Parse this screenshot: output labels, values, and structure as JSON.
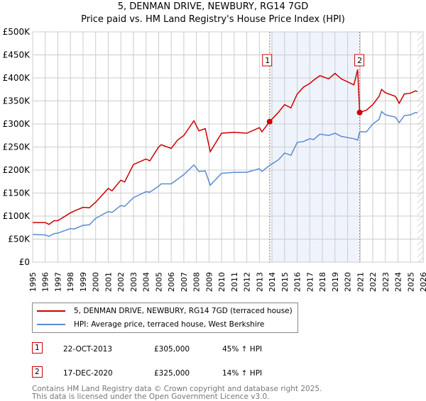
{
  "chart_data": {
    "type": "line",
    "title": "5, DENMAN DRIVE, NEWBURY, RG14 7GD",
    "subtitle": "Price paid vs. HM Land Registry's House Price Index (HPI)",
    "xlim": [
      1995,
      2026
    ],
    "ylim": [
      0,
      500000
    ],
    "x_ticks": [
      "1995",
      "1996",
      "1997",
      "1998",
      "1999",
      "2000",
      "2001",
      "2002",
      "2003",
      "2004",
      "2005",
      "2006",
      "2007",
      "2008",
      "2009",
      "2010",
      "2011",
      "2012",
      "2013",
      "2014",
      "2015",
      "2016",
      "2017",
      "2018",
      "2019",
      "2020",
      "2021",
      "2022",
      "2023",
      "2024",
      "2025",
      "2026"
    ],
    "y_ticks": [
      "£0",
      "£50K",
      "£100K",
      "£150K",
      "£200K",
      "£250K",
      "£300K",
      "£350K",
      "£400K",
      "£450K",
      "£500K"
    ],
    "grid": true,
    "shaded_region": [
      2013.81,
      2020.96
    ],
    "forecast_hatch_from": 2025.55,
    "series": [
      {
        "name": "5, DENMAN DRIVE, NEWBURY, RG14 7GD (terraced house)",
        "color": "#cc0000",
        "x": [
          1995,
          1996,
          1996.3,
          1996.7,
          1997,
          1998,
          1998.3,
          1999,
          1999.5,
          2000,
          2001,
          2001.3,
          2002,
          2002.3,
          2003,
          2004,
          2004.3,
          2005,
          2005.2,
          2006,
          2006.5,
          2007,
          2007.8,
          2008.2,
          2008.7,
          2009.1,
          2010,
          2011,
          2012,
          2013,
          2013.2,
          2013.81,
          2014.5,
          2015,
          2015.5,
          2016,
          2016.5,
          2017,
          2017.3,
          2017.8,
          2018.5,
          2019,
          2019.5,
          2020.5,
          2020.8,
          2020.96,
          2021.5,
          2022,
          2022.5,
          2022.7,
          2023,
          2023.8,
          2024.1,
          2024.5,
          2025,
          2025.4,
          2025.55
        ],
        "y": [
          86000,
          86000,
          82000,
          90000,
          90000,
          107000,
          111000,
          119000,
          118000,
          130000,
          160000,
          155000,
          178000,
          174000,
          212000,
          224000,
          220000,
          250000,
          255000,
          247000,
          265000,
          275000,
          307000,
          285000,
          290000,
          240000,
          280000,
          282000,
          280000,
          292000,
          283000,
          305000,
          325000,
          342000,
          335000,
          365000,
          380000,
          388000,
          395000,
          405000,
          398000,
          410000,
          398000,
          385000,
          418000,
          325000,
          330000,
          342000,
          360000,
          375000,
          368000,
          360000,
          345000,
          365000,
          367000,
          372000,
          370000
        ]
      },
      {
        "name": "HPI: Average price, terraced house, West Berkshire",
        "color": "#5b8bd0",
        "x": [
          1995,
          1996,
          1996.3,
          1996.7,
          1997,
          1998,
          1998.3,
          1999,
          1999.5,
          2000,
          2001,
          2001.3,
          2002,
          2002.3,
          2003,
          2004,
          2004.3,
          2005,
          2005.2,
          2006,
          2006.5,
          2007,
          2007.8,
          2008.2,
          2008.7,
          2009.1,
          2010,
          2011,
          2012,
          2013,
          2013.2,
          2013.81,
          2014.5,
          2015,
          2015.5,
          2016,
          2016.5,
          2017,
          2017.3,
          2017.8,
          2018.5,
          2019,
          2019.5,
          2020.5,
          2020.8,
          2020.96,
          2021.5,
          2022,
          2022.5,
          2022.7,
          2023,
          2023.8,
          2024.1,
          2024.5,
          2025,
          2025.4,
          2025.55
        ],
        "y": [
          60000,
          59000,
          56000,
          62000,
          63000,
          73000,
          72000,
          80000,
          81000,
          95000,
          110000,
          108000,
          123000,
          121000,
          140000,
          153000,
          152000,
          165000,
          170000,
          170000,
          180000,
          190000,
          211000,
          197000,
          198000,
          167000,
          193000,
          195000,
          195000,
          203000,
          197000,
          210000,
          222000,
          237000,
          232000,
          260000,
          262000,
          268000,
          266000,
          278000,
          275000,
          280000,
          273000,
          268000,
          265000,
          283000,
          283000,
          300000,
          310000,
          327000,
          320000,
          315000,
          303000,
          318000,
          320000,
          325000,
          324000
        ]
      }
    ],
    "sales": [
      {
        "label": "1",
        "date": "22-OCT-2013",
        "x": 2013.81,
        "price": "£305,000",
        "value": 305000,
        "hpi": "45% ↑ HPI"
      },
      {
        "label": "2",
        "date": "17-DEC-2020",
        "x": 2020.96,
        "price": "£325,000",
        "value": 325000,
        "hpi": "14% ↑ HPI"
      }
    ]
  },
  "footer": [
    "Contains HM Land Registry data © Crown copyright and database right 2025.",
    "This data is licensed under the Open Government Licence v3.0."
  ]
}
